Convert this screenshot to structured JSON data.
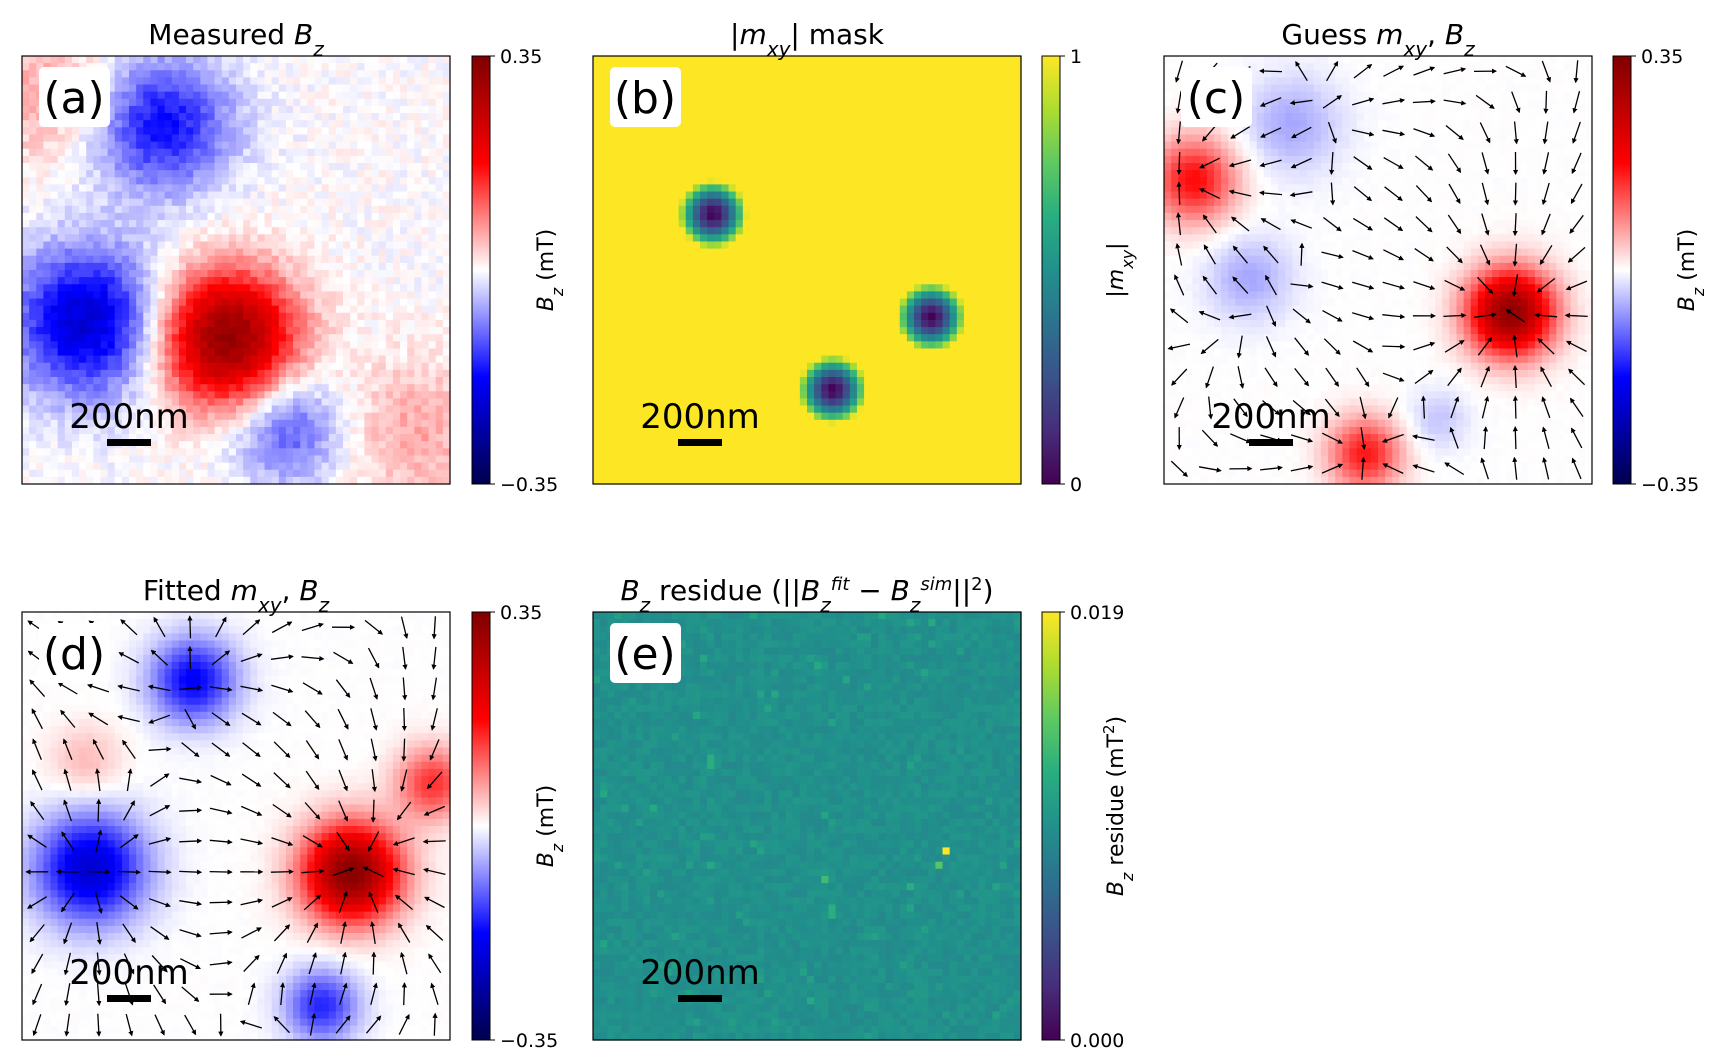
{
  "chart_data": [
    {
      "type": "heatmap",
      "panel_label": "(a)",
      "title": "Measured B_z",
      "title_parts": [
        "Measured ",
        "B",
        "z"
      ],
      "colormap": "seismic",
      "colorbar": {
        "label": "B_z (mT)",
        "label_parts": [
          "B",
          "z",
          " (mT)"
        ],
        "range": [
          -0.35,
          0.35
        ],
        "tick_labels": [
          "0.35",
          "−0.35"
        ]
      },
      "scale_bar": "200nm",
      "quiver": false,
      "features": [
        {
          "x": 0.48,
          "y": 0.34,
          "value": 0.33,
          "sigma": 0.11
        },
        {
          "x": 0.15,
          "y": 0.38,
          "value": -0.22,
          "sigma": 0.12
        },
        {
          "x": 0.33,
          "y": 0.84,
          "value": -0.17,
          "sigma": 0.11
        },
        {
          "x": 0.62,
          "y": 0.13,
          "value": -0.12,
          "sigma": 0.09
        },
        {
          "x": 0.05,
          "y": 0.92,
          "value": 0.06,
          "sigma": 0.12
        },
        {
          "x": 0.92,
          "y": 0.12,
          "value": 0.06,
          "sigma": 0.12
        }
      ]
    },
    {
      "type": "heatmap",
      "panel_label": "(b)",
      "title": "|m_xy| mask",
      "title_parts": [
        "|",
        "m",
        "xy",
        "| mask"
      ],
      "colormap": "viridis",
      "colorbar": {
        "label": "|m_xy|",
        "label_parts": [
          "|",
          "m",
          "xy",
          "|"
        ],
        "range": [
          0,
          1
        ],
        "tick_labels": [
          "1",
          "0"
        ]
      },
      "scale_bar": "200nm",
      "quiver": false,
      "background": 1,
      "holes": [
        {
          "x": 0.28,
          "y": 0.63,
          "radius": 0.08
        },
        {
          "x": 0.79,
          "y": 0.39,
          "radius": 0.08
        },
        {
          "x": 0.56,
          "y": 0.22,
          "radius": 0.08
        }
      ]
    },
    {
      "type": "heatmap",
      "panel_label": "(c)",
      "title": "Guess m_xy, B_z",
      "title_parts": [
        "Guess ",
        "m",
        "xy",
        ", ",
        "B",
        "z"
      ],
      "colormap": "seismic",
      "colorbar": {
        "label": "B_z (mT)",
        "label_parts": [
          "B",
          "z",
          " (mT)"
        ],
        "range": [
          -0.35,
          0.35
        ],
        "tick_labels": [
          "0.35",
          "−0.35"
        ]
      },
      "scale_bar": "200nm",
      "quiver": true,
      "features": [
        {
          "x": 0.81,
          "y": 0.4,
          "value": 0.33,
          "sigma": 0.07
        },
        {
          "x": 0.07,
          "y": 0.71,
          "value": 0.17,
          "sigma": 0.07
        },
        {
          "x": 0.47,
          "y": 0.07,
          "value": 0.16,
          "sigma": 0.06
        },
        {
          "x": 0.3,
          "y": 0.84,
          "value": -0.06,
          "sigma": 0.08
        },
        {
          "x": 0.2,
          "y": 0.48,
          "value": -0.06,
          "sigma": 0.07
        },
        {
          "x": 0.64,
          "y": 0.15,
          "value": -0.04,
          "sigma": 0.05
        }
      ]
    },
    {
      "type": "heatmap",
      "panel_label": "(d)",
      "title": "Fitted m_xy, B_z",
      "title_parts": [
        "Fitted ",
        "m",
        "xy",
        ", ",
        "B",
        "z"
      ],
      "colormap": "seismic",
      "colorbar": {
        "label": "B_z (mT)",
        "label_parts": [
          "B",
          "z",
          " (mT)"
        ],
        "range": [
          -0.35,
          0.35
        ],
        "tick_labels": [
          "0.35",
          "−0.35"
        ]
      },
      "scale_bar": "200nm",
      "quiver": true,
      "features": [
        {
          "x": 0.77,
          "y": 0.39,
          "value": 0.34,
          "sigma": 0.08
        },
        {
          "x": 0.16,
          "y": 0.4,
          "value": -0.22,
          "sigma": 0.09
        },
        {
          "x": 0.4,
          "y": 0.84,
          "value": -0.18,
          "sigma": 0.07
        },
        {
          "x": 0.7,
          "y": 0.08,
          "value": -0.15,
          "sigma": 0.06
        },
        {
          "x": 0.96,
          "y": 0.6,
          "value": 0.14,
          "sigma": 0.06
        },
        {
          "x": 0.15,
          "y": 0.65,
          "value": 0.05,
          "sigma": 0.06
        }
      ]
    },
    {
      "type": "heatmap",
      "panel_label": "(e)",
      "title": "B_z residue (||B_z^fit - B_z^sim||^2)",
      "title_parts": [
        "B",
        "z",
        " residue (||",
        "B",
        "z",
        "fit",
        " − ",
        "B",
        "z",
        "sim",
        "||",
        "2",
        ")"
      ],
      "colormap": "viridis",
      "colorbar": {
        "label": "B_z residue (mT^2)",
        "label_parts": [
          "B",
          "z",
          " residue (mT",
          "2",
          ")"
        ],
        "range": [
          0.0,
          0.019
        ],
        "tick_labels": [
          "0.019",
          "0.000"
        ]
      },
      "scale_bar": "200nm",
      "quiver": false,
      "background": 0.0095,
      "hotspots": [
        {
          "x": 0.83,
          "y": 0.44,
          "value": 0.019
        },
        {
          "x": 0.81,
          "y": 0.41,
          "value": 0.014
        },
        {
          "x": 0.54,
          "y": 0.38,
          "value": 0.013
        },
        {
          "x": 0.56,
          "y": 0.3,
          "value": 0.012
        },
        {
          "x": 0.27,
          "y": 0.65,
          "value": 0.012
        },
        {
          "x": 0.53,
          "y": 0.88,
          "value": 0.0115
        },
        {
          "x": 0.74,
          "y": 0.36,
          "value": 0.012
        }
      ]
    }
  ]
}
